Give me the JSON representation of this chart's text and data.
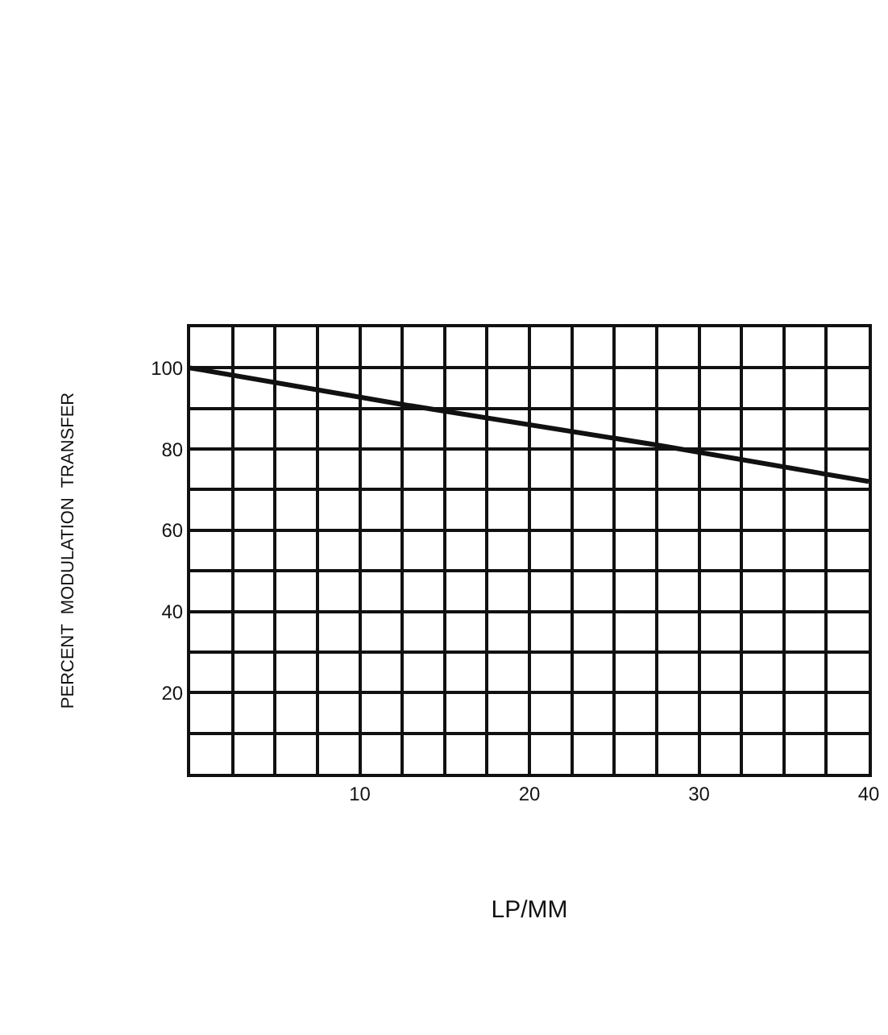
{
  "chart_data": {
    "type": "line",
    "xlabel": "LP/MM",
    "ylabel": "PERCENT  MODULATION  TRANSFER",
    "x": [
      0,
      12.5,
      27.5,
      40
    ],
    "series": [
      {
        "color": "#111111",
        "values": [
          100,
          91,
          81,
          72
        ]
      }
    ],
    "xlim": [
      0,
      40
    ],
    "ylim": [
      0,
      110
    ],
    "xticks": [
      {
        "value": 0,
        "label": null
      },
      {
        "value": 2.5,
        "label": null
      },
      {
        "value": 5,
        "label": null
      },
      {
        "value": 7.5,
        "label": null
      },
      10,
      {
        "value": 12.5,
        "label": null
      },
      {
        "value": 15,
        "label": null
      },
      {
        "value": 17.5,
        "label": null
      },
      20,
      {
        "value": 22.5,
        "label": null
      },
      {
        "value": 25,
        "label": null
      },
      {
        "value": 27.5,
        "label": null
      },
      30,
      {
        "value": 32.5,
        "label": null
      },
      {
        "value": 35,
        "label": null
      },
      {
        "value": 37.5,
        "label": null
      },
      40
    ],
    "yticks": [
      {
        "value": 0,
        "label": null
      },
      {
        "value": 10,
        "label": null
      },
      20,
      {
        "value": 30,
        "label": null
      },
      40,
      {
        "value": 50,
        "label": null
      },
      60,
      {
        "value": 70,
        "label": null
      },
      80,
      {
        "value": 90,
        "label": null
      },
      100,
      {
        "value": 110,
        "label": null
      }
    ],
    "grid": true,
    "marker": "none",
    "line_style": "solid"
  }
}
